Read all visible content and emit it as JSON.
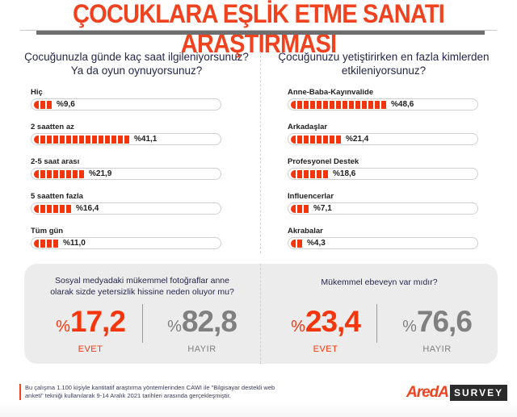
{
  "title": "ÇOCUKLARA EŞLİK ETME SANATI ARAŞTIRMASI",
  "colors": {
    "accent": "#f0421f",
    "bar": "#f5360c",
    "no": "#808080",
    "panel": "#ececec",
    "text": "#26264a"
  },
  "left_chart": {
    "question": "Çocuğunuzla günde kaç saat ilgileniyorsunuz? Ya da oyun oynuyorsunuz?",
    "items": [
      {
        "label": "Hiç",
        "value_label": "%9,6",
        "value": 9.6,
        "segments": 3
      },
      {
        "label": "2 saatten az",
        "value_label": "%41,1",
        "value": 41.1,
        "segments": 15
      },
      {
        "label": "2-5 saat arası",
        "value_label": "%21,9",
        "value": 21.9,
        "segments": 8
      },
      {
        "label": "5 saatten fazla",
        "value_label": "%16,4",
        "value": 16.4,
        "segments": 6
      },
      {
        "label": "Tüm gün",
        "value_label": "%11,0",
        "value": 11.0,
        "segments": 4
      }
    ]
  },
  "right_chart": {
    "question": "Çocuğunuzu yetiştirirken en fazla kimlerden etkileniyorsunuz?",
    "items": [
      {
        "label": "Anne-Baba-Kayınvalide",
        "value_label": "%48,6",
        "value": 48.6,
        "segments": 15
      },
      {
        "label": "Arkadaşlar",
        "value_label": "%21,4",
        "value": 21.4,
        "segments": 8
      },
      {
        "label": "Profesyonel Destek",
        "value_label": "%18,6",
        "value": 18.6,
        "segments": 6
      },
      {
        "label": "Influencerlar",
        "value_label": "%7,1",
        "value": 7.1,
        "segments": 3
      },
      {
        "label": "Akrabalar",
        "value_label": "%4,3",
        "value": 4.3,
        "segments": 2
      }
    ]
  },
  "panel_left": {
    "question": "Sosyal medyadaki mükemmel fotoğraflar anne olarak sizde yetersizlik hissine neden oluyor mu?",
    "yes": {
      "pct": "%",
      "value": "17,2",
      "label": "EVET"
    },
    "no": {
      "pct": "%",
      "value": "82,8",
      "label": "HAYIR"
    }
  },
  "panel_right": {
    "question": "Mükemmel ebeveyn var mıdır?",
    "yes": {
      "pct": "%",
      "value": "23,4",
      "label": "EVET"
    },
    "no": {
      "pct": "%",
      "value": "76,6",
      "label": "HAYIR"
    }
  },
  "footnote": "Bu çalışma 1.100 kişiyle kantitatif araştırma yöntemlerinden CAWI ile \"Bilgisayar destekli web anketi\" tekniği kullanılarak 9-14 Aralık 2021 tarihleri arasında gerçekleşmiştir.",
  "logo": {
    "brand": "AredA",
    "product": "SURVEY"
  },
  "chart_data": [
    {
      "type": "bar",
      "title": "Çocuğunuzla günde kaç saat ilgileniyorsunuz? Ya da oyun oynuyorsunuz?",
      "categories": [
        "Hiç",
        "2 saatten az",
        "2-5 saat arası",
        "5 saatten fazla",
        "Tüm gün"
      ],
      "values": [
        9.6,
        41.1,
        21.9,
        16.4,
        11.0
      ],
      "xlabel": "",
      "ylabel": "%",
      "orientation": "horizontal",
      "ylim": [
        0,
        100
      ],
      "grid": false,
      "legend": "none"
    },
    {
      "type": "bar",
      "title": "Çocuğunuzu yetiştirirken en fazla kimlerden etkileniyorsunuz?",
      "categories": [
        "Anne-Baba-Kayınvalide",
        "Arkadaşlar",
        "Profesyonel Destek",
        "Influencerlar",
        "Akrabalar"
      ],
      "values": [
        48.6,
        21.4,
        18.6,
        7.1,
        4.3
      ],
      "xlabel": "",
      "ylabel": "%",
      "orientation": "horizontal",
      "ylim": [
        0,
        100
      ],
      "grid": false,
      "legend": "none"
    },
    {
      "type": "table",
      "title": "Sosyal medyadaki mükemmel fotoğraflar anne olarak sizde yetersizlik hissine neden oluyor mu?",
      "categories": [
        "EVET",
        "HAYIR"
      ],
      "values": [
        17.2,
        82.8
      ]
    },
    {
      "type": "table",
      "title": "Mükemmel ebeveyn var mıdır?",
      "categories": [
        "EVET",
        "HAYIR"
      ],
      "values": [
        23.4,
        76.6
      ]
    }
  ]
}
